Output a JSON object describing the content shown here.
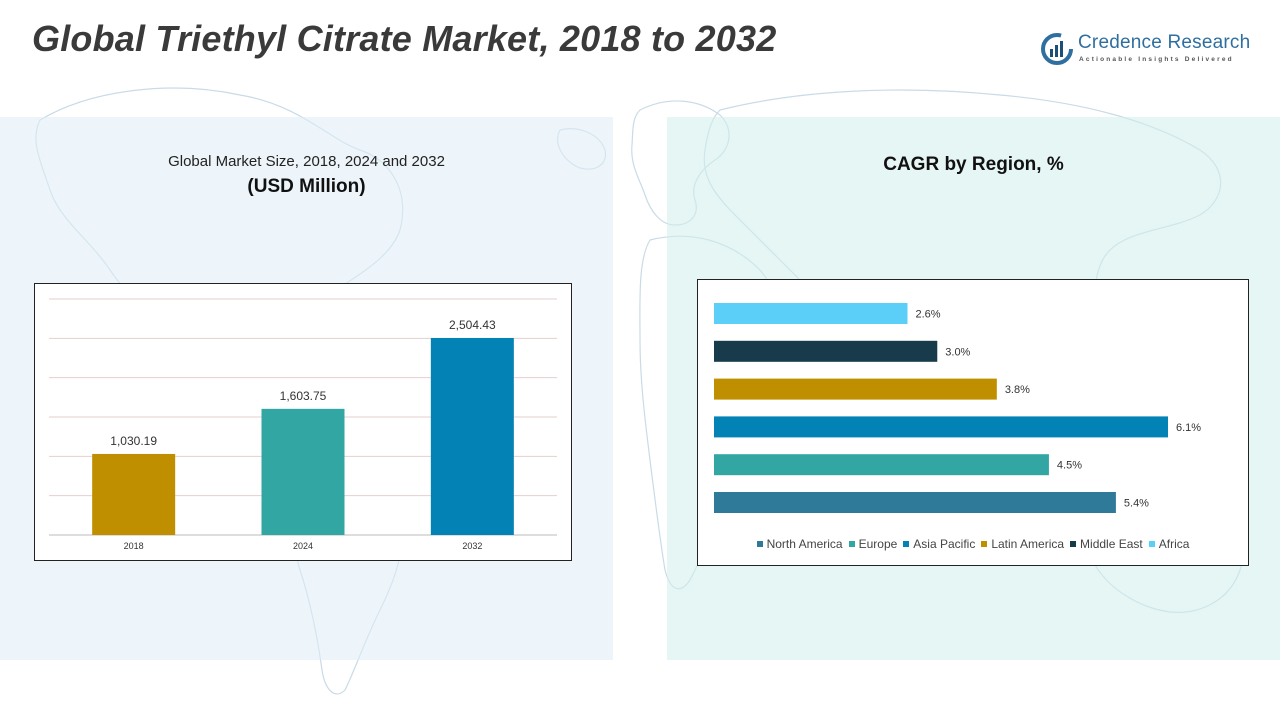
{
  "header": {
    "title": "Global Triethyl Citrate Market, 2018 to 2032"
  },
  "logo": {
    "name": "Credence Research",
    "tagline": "Actionable Insights Delivered"
  },
  "colors": {
    "gold": "#BF8F00",
    "teal": "#31A6A3",
    "blue": "#0382B5",
    "steel": "#2F7A98",
    "navy": "#173B4A",
    "sky": "#5BCFF7"
  },
  "left_panel": {
    "subtitle": "Global Market Size, 2018, 2024 and 2032",
    "unit": "(USD Million)"
  },
  "right_panel": {
    "title": "CAGR by Region, %"
  },
  "chart_data": [
    {
      "type": "bar",
      "title": "Global Market Size, 2018, 2024 and 2032",
      "ylabel": "(USD Million)",
      "categories": [
        "2018",
        "2024",
        "2032"
      ],
      "values": [
        1030.19,
        1603.75,
        2504.43
      ],
      "value_labels": [
        "1,030.19",
        "1,603.75",
        "2,504.43"
      ],
      "colors": [
        "#BF8F00",
        "#31A6A3",
        "#0382B5"
      ],
      "ylim": [
        0,
        3000
      ],
      "grid": true,
      "legend": "none"
    },
    {
      "type": "bar",
      "orientation": "horizontal",
      "title": "CAGR by Region, %",
      "categories": [
        "North America",
        "Europe",
        "Asia Pacific",
        "Latin America",
        "Middle East",
        "Africa"
      ],
      "values": [
        5.4,
        4.5,
        6.1,
        3.8,
        3.0,
        2.6
      ],
      "value_labels": [
        "5.4%",
        "4.5%",
        "6.1%",
        "3.8%",
        "3.0%",
        "2.6%"
      ],
      "colors": [
        "#2F7A98",
        "#31A6A3",
        "#0382B5",
        "#BF8F00",
        "#173B4A",
        "#5BCFF7"
      ],
      "xlim": [
        0,
        6.1
      ],
      "grid": false,
      "legend": "bottom"
    }
  ]
}
